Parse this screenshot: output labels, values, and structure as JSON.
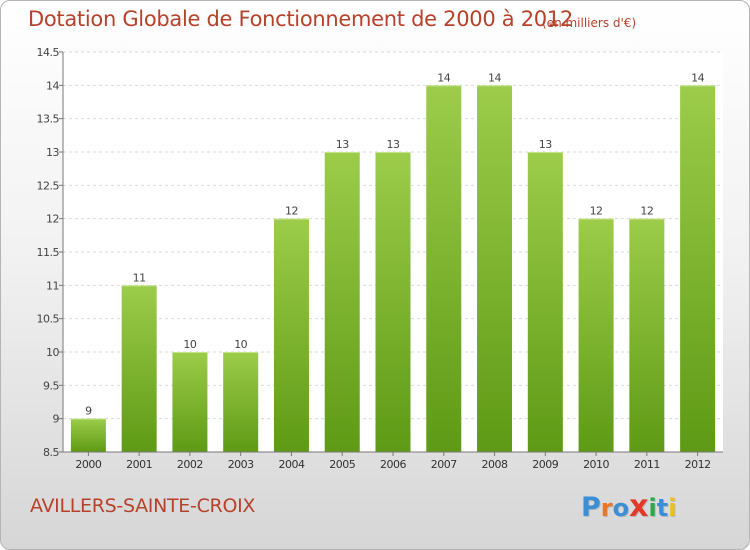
{
  "header": {
    "title": "Dotation Globale de Fonctionnement de 2000 à 2012",
    "unit": "(en milliers d'€)"
  },
  "footer": {
    "place": "AVILLERS-SAINTE-CROIX",
    "logo": "Proxiti"
  },
  "colors": {
    "title": "#b8412a",
    "bar_top": "#9ccc4a",
    "bar_bottom": "#5e9a15",
    "grid": "#d9d9d9",
    "axis": "#777777"
  },
  "chart_data": {
    "type": "bar",
    "title": "Dotation Globale de Fonctionnement de 2000 à 2012",
    "subtitle": "(en milliers d'€)",
    "categories": [
      "2000",
      "2001",
      "2002",
      "2003",
      "2004",
      "2005",
      "2006",
      "2007",
      "2008",
      "2009",
      "2010",
      "2011",
      "2012"
    ],
    "values": [
      9,
      11,
      10,
      10,
      12,
      13,
      13,
      14,
      14,
      13,
      12,
      12,
      14
    ],
    "data_labels": [
      "9",
      "11",
      "10",
      "10",
      "12",
      "13",
      "13",
      "14",
      "14",
      "13",
      "12",
      "12",
      "14"
    ],
    "yticks": [
      "8.5",
      "9",
      "9.5",
      "10",
      "10.5",
      "11",
      "11.5",
      "12",
      "12.5",
      "13",
      "13.5",
      "14",
      "14.5"
    ],
    "ylim": [
      8.5,
      14.5
    ],
    "xlabel": "",
    "ylabel": "",
    "grid": true,
    "legend": "none"
  }
}
